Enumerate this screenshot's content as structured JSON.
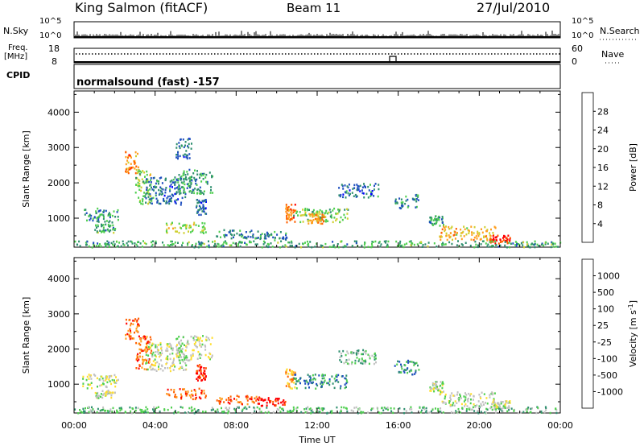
{
  "header": {
    "station": "King Salmon (fitACF)",
    "beam": "Beam 11",
    "date": "27/Jul/2010"
  },
  "strip": {
    "nsky_label": "N.Sky",
    "nsearch_label": "N.Search",
    "nsky_ticks": [
      "10^5",
      "10^0"
    ],
    "nsearch_ticks": [
      "10^5",
      "10^0"
    ],
    "freq_label_1": "Freq.",
    "freq_label_2": "[MHz]",
    "freq_ticks": [
      "18",
      "8"
    ],
    "nave_label": "Nave",
    "nave_ticks": [
      "60",
      "0"
    ],
    "cpid_label": "CPID",
    "cpid_value": "normalsound (fast) -157"
  },
  "chart_data": [
    {
      "type": "heatmap",
      "title": "",
      "xlabel": "",
      "ylabel": "Slant Range [km]",
      "xlim": [
        0,
        24
      ],
      "ylim": [
        180,
        4600
      ],
      "yticks": [
        "1000",
        "2000",
        "3000",
        "4000"
      ],
      "colorbar_label": "Power [dB]",
      "colorbar_ticks": [
        "4",
        "8",
        "12",
        "16",
        "20",
        "24",
        "28"
      ],
      "colorbar_range": [
        0,
        32
      ],
      "colors": [
        "#0000ff",
        "#1f4fbf",
        "#2f8f6f",
        "#4fcf4f",
        "#cfcf2f",
        "#ff9f1f",
        "#ff5f00",
        "#ff0000"
      ],
      "regions": [
        {
          "t": [
            0.4,
            2.2
          ],
          "r": [
            900,
            1300
          ],
          "v": 8
        },
        {
          "t": [
            1.0,
            2.0
          ],
          "r": [
            600,
            850
          ],
          "v": 10
        },
        {
          "t": [
            2.5,
            3.2
          ],
          "r": [
            2300,
            2900
          ],
          "v": 22
        },
        {
          "t": [
            3.0,
            3.8
          ],
          "r": [
            1400,
            2400
          ],
          "v": 14
        },
        {
          "t": [
            3.5,
            5.5
          ],
          "r": [
            1400,
            2200
          ],
          "v": 6
        },
        {
          "t": [
            5.0,
            6.8
          ],
          "r": [
            1700,
            2400
          ],
          "v": 9
        },
        {
          "t": [
            5.0,
            5.8
          ],
          "r": [
            2700,
            3300
          ],
          "v": 6
        },
        {
          "t": [
            4.5,
            6.5
          ],
          "r": [
            600,
            900
          ],
          "v": 15
        },
        {
          "t": [
            6.0,
            6.5
          ],
          "r": [
            1100,
            1600
          ],
          "v": 5
        },
        {
          "t": [
            7.0,
            9.0
          ],
          "r": [
            450,
            700
          ],
          "v": 7
        },
        {
          "t": [
            9.0,
            10.5
          ],
          "r": [
            400,
            650
          ],
          "v": 7
        },
        {
          "t": [
            10.4,
            10.9
          ],
          "r": [
            900,
            1450
          ],
          "v": 22
        },
        {
          "t": [
            10.8,
            13.5
          ],
          "r": [
            900,
            1300
          ],
          "v": 12
        },
        {
          "t": [
            11.5,
            12.3
          ],
          "r": [
            850,
            1150
          ],
          "v": 20
        },
        {
          "t": [
            13.0,
            15.0
          ],
          "r": [
            1600,
            2000
          ],
          "v": 6
        },
        {
          "t": [
            15.8,
            17.0
          ],
          "r": [
            1300,
            1700
          ],
          "v": 7
        },
        {
          "t": [
            17.5,
            18.2
          ],
          "r": [
            800,
            1100
          ],
          "v": 9
        },
        {
          "t": [
            18.0,
            20.8
          ],
          "r": [
            400,
            800
          ],
          "v": 18
        },
        {
          "t": [
            20.5,
            21.5
          ],
          "r": [
            300,
            550
          ],
          "v": 27
        },
        {
          "t": [
            0.0,
            24.0
          ],
          "r": [
            200,
            380
          ],
          "v": 10
        }
      ]
    },
    {
      "type": "heatmap",
      "title": "",
      "xlabel": "Time UT",
      "ylabel": "Slant Range [km]",
      "xlim": [
        0,
        24
      ],
      "ylim": [
        180,
        4600
      ],
      "xticks": [
        "00:00",
        "04:00",
        "08:00",
        "12:00",
        "16:00",
        "20:00",
        "00:00"
      ],
      "yticks": [
        "1000",
        "2000",
        "3000",
        "4000"
      ],
      "colorbar_label": "Velocity [m s^-1]",
      "colorbar_ticks": [
        "1000",
        "500",
        "100",
        "25",
        "-25",
        "-100",
        "-500",
        "-1000"
      ],
      "colors": [
        "#0000ff",
        "#1f4fbf",
        "#2f8f6f",
        "#4fcf4f",
        "#c0c0c0",
        "#ffdf2f",
        "#ff9f1f",
        "#ff5f00",
        "#ff0000"
      ],
      "regions": [
        {
          "t": [
            0.4,
            2.2
          ],
          "r": [
            900,
            1300
          ],
          "v": 4
        },
        {
          "t": [
            1.0,
            2.0
          ],
          "r": [
            600,
            850
          ],
          "v": 4
        },
        {
          "t": [
            2.5,
            3.2
          ],
          "r": [
            2300,
            2900
          ],
          "v": 7
        },
        {
          "t": [
            3.0,
            3.8
          ],
          "r": [
            1400,
            2400
          ],
          "v": 7
        },
        {
          "t": [
            3.5,
            5.5
          ],
          "r": [
            1400,
            2200
          ],
          "v": 4
        },
        {
          "t": [
            5.0,
            6.8
          ],
          "r": [
            1700,
            2400
          ],
          "v": 4
        },
        {
          "t": [
            4.5,
            6.5
          ],
          "r": [
            600,
            900
          ],
          "v": 7
        },
        {
          "t": [
            6.0,
            6.5
          ],
          "r": [
            1100,
            1600
          ],
          "v": 8
        },
        {
          "t": [
            7.0,
            9.0
          ],
          "r": [
            450,
            700
          ],
          "v": 7
        },
        {
          "t": [
            9.0,
            10.5
          ],
          "r": [
            400,
            650
          ],
          "v": 8
        },
        {
          "t": [
            10.4,
            10.9
          ],
          "r": [
            900,
            1450
          ],
          "v": 6
        },
        {
          "t": [
            10.8,
            13.5
          ],
          "r": [
            900,
            1300
          ],
          "v": 2
        },
        {
          "t": [
            13.0,
            15.0
          ],
          "r": [
            1600,
            2000
          ],
          "v": 3
        },
        {
          "t": [
            15.8,
            17.0
          ],
          "r": [
            1300,
            1700
          ],
          "v": 2
        },
        {
          "t": [
            17.5,
            18.2
          ],
          "r": [
            800,
            1100
          ],
          "v": 4
        },
        {
          "t": [
            18.0,
            20.8
          ],
          "r": [
            400,
            800
          ],
          "v": 4
        },
        {
          "t": [
            20.5,
            21.5
          ],
          "r": [
            300,
            550
          ],
          "v": 4
        },
        {
          "t": [
            0.0,
            24.0
          ],
          "r": [
            200,
            380
          ],
          "v": 3
        }
      ]
    }
  ]
}
